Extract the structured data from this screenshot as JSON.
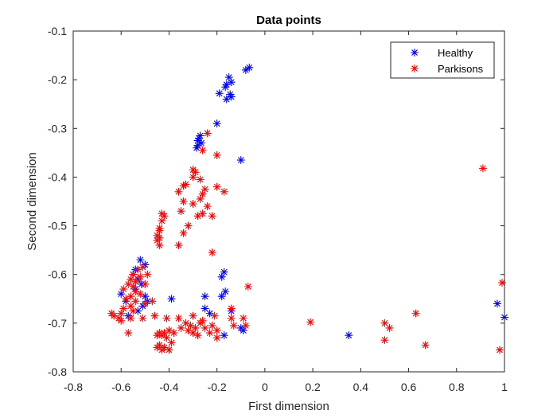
{
  "chart_data": {
    "type": "scatter",
    "title": "Data points",
    "xlabel": "First dimension",
    "ylabel": "Second dimension",
    "xlim": [
      -0.8,
      1
    ],
    "ylim": [
      -0.8,
      -0.1
    ],
    "xticks": [
      -0.8,
      -0.6,
      -0.4,
      -0.2,
      0,
      0.2,
      0.4,
      0.6,
      0.8,
      1
    ],
    "yticks": [
      -0.8,
      -0.7,
      -0.6,
      -0.5,
      -0.4,
      -0.3,
      -0.2,
      -0.1
    ],
    "xtick_labels": [
      "-0.8",
      "-0.6",
      "-0.4",
      "-0.2",
      "0",
      "0.2",
      "0.4",
      "0.6",
      "0.8",
      "1"
    ],
    "ytick_labels": [
      "-0.8",
      "-0.7",
      "-0.6",
      "-0.5",
      "-0.4",
      "-0.3",
      "-0.2",
      "-0.1"
    ],
    "grid": false,
    "legend_position": "top-right",
    "marker": "*",
    "series": [
      {
        "name": "Healthy",
        "color": "#0000ff",
        "points": [
          [
            -0.065,
            -0.175
          ],
          [
            -0.08,
            -0.18
          ],
          [
            -0.15,
            -0.195
          ],
          [
            -0.14,
            -0.205
          ],
          [
            -0.16,
            -0.21
          ],
          [
            -0.165,
            -0.215
          ],
          [
            -0.145,
            -0.23
          ],
          [
            -0.19,
            -0.228
          ],
          [
            -0.14,
            -0.235
          ],
          [
            -0.16,
            -0.24
          ],
          [
            -0.2,
            -0.29
          ],
          [
            -0.27,
            -0.315
          ],
          [
            -0.275,
            -0.32
          ],
          [
            -0.28,
            -0.325
          ],
          [
            -0.265,
            -0.33
          ],
          [
            -0.28,
            -0.335
          ],
          [
            -0.285,
            -0.34
          ],
          [
            -0.1,
            -0.365
          ],
          [
            -0.52,
            -0.57
          ],
          [
            -0.5,
            -0.58
          ],
          [
            -0.54,
            -0.59
          ],
          [
            -0.55,
            -0.6
          ],
          [
            -0.53,
            -0.61
          ],
          [
            -0.515,
            -0.62
          ],
          [
            -0.54,
            -0.63
          ],
          [
            -0.6,
            -0.64
          ],
          [
            -0.58,
            -0.655
          ],
          [
            -0.5,
            -0.645
          ],
          [
            -0.49,
            -0.655
          ],
          [
            -0.51,
            -0.665
          ],
          [
            -0.53,
            -0.675
          ],
          [
            -0.57,
            -0.685
          ],
          [
            -0.17,
            -0.595
          ],
          [
            -0.18,
            -0.605
          ],
          [
            -0.165,
            -0.635
          ],
          [
            -0.25,
            -0.645
          ],
          [
            -0.18,
            -0.645
          ],
          [
            -0.39,
            -0.65
          ],
          [
            -0.25,
            -0.67
          ],
          [
            -0.23,
            -0.68
          ],
          [
            -0.14,
            -0.675
          ],
          [
            -0.1,
            -0.71
          ],
          [
            -0.09,
            -0.715
          ],
          [
            -0.17,
            -0.725
          ],
          [
            0.35,
            -0.725
          ],
          [
            0.97,
            -0.66
          ],
          [
            1.0,
            -0.688
          ]
        ]
      },
      {
        "name": "Parkisons",
        "color": "#ff0000",
        "points": [
          [
            -0.24,
            -0.31
          ],
          [
            -0.26,
            -0.345
          ],
          [
            -0.2,
            -0.355
          ],
          [
            -0.3,
            -0.385
          ],
          [
            -0.29,
            -0.39
          ],
          [
            -0.3,
            -0.4
          ],
          [
            -0.27,
            -0.405
          ],
          [
            -0.33,
            -0.415
          ],
          [
            -0.34,
            -0.418
          ],
          [
            -0.2,
            -0.42
          ],
          [
            -0.25,
            -0.425
          ],
          [
            -0.36,
            -0.43
          ],
          [
            -0.26,
            -0.435
          ],
          [
            -0.17,
            -0.43
          ],
          [
            -0.27,
            -0.445
          ],
          [
            -0.34,
            -0.45
          ],
          [
            -0.3,
            -0.455
          ],
          [
            -0.24,
            -0.46
          ],
          [
            -0.35,
            -0.47
          ],
          [
            -0.26,
            -0.475
          ],
          [
            -0.22,
            -0.48
          ],
          [
            -0.43,
            -0.475
          ],
          [
            -0.42,
            -0.48
          ],
          [
            -0.28,
            -0.48
          ],
          [
            -0.43,
            -0.49
          ],
          [
            -0.32,
            -0.5
          ],
          [
            -0.44,
            -0.505
          ],
          [
            -0.44,
            -0.51
          ],
          [
            -0.34,
            -0.515
          ],
          [
            -0.45,
            -0.52
          ],
          [
            -0.44,
            -0.525
          ],
          [
            -0.45,
            -0.53
          ],
          [
            -0.44,
            -0.54
          ],
          [
            -0.36,
            -0.54
          ],
          [
            -0.22,
            -0.555
          ],
          [
            -0.51,
            -0.585
          ],
          [
            -0.53,
            -0.59
          ],
          [
            -0.55,
            -0.6
          ],
          [
            -0.49,
            -0.6
          ],
          [
            -0.52,
            -0.605
          ],
          [
            -0.56,
            -0.61
          ],
          [
            -0.54,
            -0.615
          ],
          [
            -0.57,
            -0.62
          ],
          [
            -0.5,
            -0.62
          ],
          [
            -0.55,
            -0.625
          ],
          [
            -0.59,
            -0.63
          ],
          [
            -0.54,
            -0.635
          ],
          [
            -0.52,
            -0.64
          ],
          [
            -0.56,
            -0.645
          ],
          [
            -0.58,
            -0.65
          ],
          [
            -0.54,
            -0.655
          ],
          [
            -0.5,
            -0.66
          ],
          [
            -0.56,
            -0.665
          ],
          [
            -0.59,
            -0.67
          ],
          [
            -0.55,
            -0.675
          ],
          [
            -0.6,
            -0.68
          ],
          [
            -0.64,
            -0.68
          ],
          [
            -0.63,
            -0.685
          ],
          [
            -0.61,
            -0.69
          ],
          [
            -0.6,
            -0.695
          ],
          [
            -0.51,
            -0.69
          ],
          [
            -0.56,
            -0.69
          ],
          [
            -0.47,
            -0.655
          ],
          [
            -0.46,
            -0.685
          ],
          [
            -0.41,
            -0.69
          ],
          [
            -0.36,
            -0.69
          ],
          [
            -0.3,
            -0.685
          ],
          [
            -0.33,
            -0.7
          ],
          [
            -0.31,
            -0.705
          ],
          [
            -0.26,
            -0.695
          ],
          [
            -0.35,
            -0.71
          ],
          [
            -0.32,
            -0.715
          ],
          [
            -0.29,
            -0.71
          ],
          [
            -0.27,
            -0.7
          ],
          [
            -0.25,
            -0.71
          ],
          [
            -0.22,
            -0.705
          ],
          [
            -0.21,
            -0.685
          ],
          [
            -0.14,
            -0.67
          ],
          [
            -0.14,
            -0.69
          ],
          [
            -0.09,
            -0.69
          ],
          [
            -0.13,
            -0.705
          ],
          [
            -0.08,
            -0.705
          ],
          [
            -0.2,
            -0.715
          ],
          [
            -0.23,
            -0.72
          ],
          [
            -0.3,
            -0.72
          ],
          [
            -0.28,
            -0.725
          ],
          [
            -0.38,
            -0.72
          ],
          [
            -0.4,
            -0.715
          ],
          [
            -0.42,
            -0.72
          ],
          [
            -0.44,
            -0.72
          ],
          [
            -0.57,
            -0.72
          ],
          [
            -0.45,
            -0.725
          ],
          [
            -0.43,
            -0.725
          ],
          [
            -0.41,
            -0.73
          ],
          [
            -0.2,
            -0.73
          ],
          [
            -0.07,
            -0.625
          ],
          [
            -0.44,
            -0.745
          ],
          [
            -0.42,
            -0.75
          ],
          [
            -0.39,
            -0.74
          ],
          [
            -0.4,
            -0.755
          ],
          [
            -0.43,
            -0.755
          ],
          [
            -0.45,
            -0.75
          ],
          [
            0.19,
            -0.698
          ],
          [
            0.5,
            -0.7
          ],
          [
            0.52,
            -0.71
          ],
          [
            0.5,
            -0.735
          ],
          [
            0.63,
            -0.68
          ],
          [
            0.67,
            -0.745
          ],
          [
            0.91,
            -0.382
          ],
          [
            0.99,
            -0.617
          ],
          [
            0.98,
            -0.755
          ]
        ]
      }
    ]
  }
}
